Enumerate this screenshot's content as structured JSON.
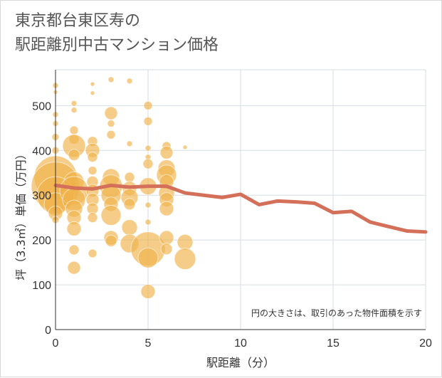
{
  "title_line1": "東京都台東区寿の",
  "title_line2": "駅距離別中古マンション価格",
  "chart_data": {
    "type": "scatter",
    "xlabel": "駅距離（分）",
    "ylabel": "坪（3.3㎡）単価（万円）",
    "xlim": [
      0,
      20
    ],
    "ylim": [
      0,
      580
    ],
    "x_ticks": [
      "0",
      "5",
      "10",
      "15",
      "20"
    ],
    "x_tick_values": [
      0,
      5,
      10,
      15,
      20
    ],
    "y_ticks": [
      "0",
      "100",
      "200",
      "300",
      "400",
      "500"
    ],
    "y_tick_values": [
      0,
      100,
      200,
      300,
      400,
      500
    ],
    "note": "円の大きさは、取引のあった物件面積を示す",
    "colors": {
      "bubble": "#f0b24a",
      "line": "#d4705a",
      "grid": "#d7dde3",
      "axis": "#333333"
    },
    "line": {
      "x": [
        0,
        1,
        2,
        3,
        4,
        5,
        6,
        7,
        8,
        9,
        10,
        11,
        12,
        13,
        14,
        15,
        16,
        17,
        18,
        19,
        20
      ],
      "y": [
        322,
        316,
        314,
        322,
        318,
        320,
        320,
        305,
        300,
        295,
        302,
        279,
        287,
        285,
        282,
        261,
        264,
        240,
        230,
        220,
        218
      ]
    },
    "bubbles": [
      {
        "x": 0,
        "y": 545,
        "size": 4
      },
      {
        "x": 0,
        "y": 530,
        "size": 3
      },
      {
        "x": 0,
        "y": 480,
        "size": 4
      },
      {
        "x": 0,
        "y": 460,
        "size": 4
      },
      {
        "x": 0,
        "y": 430,
        "size": 5
      },
      {
        "x": 0,
        "y": 400,
        "size": 5
      },
      {
        "x": 0,
        "y": 340,
        "size": 30
      },
      {
        "x": 0,
        "y": 320,
        "size": 34
      },
      {
        "x": 0,
        "y": 300,
        "size": 26
      },
      {
        "x": 0,
        "y": 280,
        "size": 16
      },
      {
        "x": 0,
        "y": 260,
        "size": 10
      },
      {
        "x": 0,
        "y": 245,
        "size": 5
      },
      {
        "x": 1,
        "y": 505,
        "size": 4
      },
      {
        "x": 1,
        "y": 490,
        "size": 4
      },
      {
        "x": 1,
        "y": 445,
        "size": 6
      },
      {
        "x": 1,
        "y": 425,
        "size": 7
      },
      {
        "x": 1,
        "y": 410,
        "size": 16
      },
      {
        "x": 1,
        "y": 390,
        "size": 8
      },
      {
        "x": 1,
        "y": 330,
        "size": 14
      },
      {
        "x": 1,
        "y": 310,
        "size": 20
      },
      {
        "x": 1,
        "y": 290,
        "size": 16
      },
      {
        "x": 1,
        "y": 270,
        "size": 12
      },
      {
        "x": 1,
        "y": 250,
        "size": 10
      },
      {
        "x": 1,
        "y": 225,
        "size": 10
      },
      {
        "x": 1,
        "y": 178,
        "size": 7
      },
      {
        "x": 1,
        "y": 138,
        "size": 9
      },
      {
        "x": 2,
        "y": 548,
        "size": 3
      },
      {
        "x": 2,
        "y": 528,
        "size": 3
      },
      {
        "x": 2,
        "y": 420,
        "size": 7
      },
      {
        "x": 2,
        "y": 400,
        "size": 10
      },
      {
        "x": 2,
        "y": 385,
        "size": 7
      },
      {
        "x": 2,
        "y": 355,
        "size": 6
      },
      {
        "x": 2,
        "y": 330,
        "size": 8
      },
      {
        "x": 2,
        "y": 310,
        "size": 9
      },
      {
        "x": 2,
        "y": 290,
        "size": 9
      },
      {
        "x": 2,
        "y": 270,
        "size": 8
      },
      {
        "x": 2,
        "y": 250,
        "size": 7
      },
      {
        "x": 2,
        "y": 170,
        "size": 6
      },
      {
        "x": 3,
        "y": 558,
        "size": 4
      },
      {
        "x": 3,
        "y": 483,
        "size": 9
      },
      {
        "x": 3,
        "y": 460,
        "size": 5
      },
      {
        "x": 3,
        "y": 435,
        "size": 6
      },
      {
        "x": 3,
        "y": 340,
        "size": 12
      },
      {
        "x": 3,
        "y": 320,
        "size": 16
      },
      {
        "x": 3,
        "y": 300,
        "size": 14
      },
      {
        "x": 3,
        "y": 280,
        "size": 10
      },
      {
        "x": 3,
        "y": 255,
        "size": 14
      },
      {
        "x": 3,
        "y": 205,
        "size": 10
      },
      {
        "x": 3,
        "y": 198,
        "size": 8
      },
      {
        "x": 4,
        "y": 555,
        "size": 4
      },
      {
        "x": 4,
        "y": 415,
        "size": 4
      },
      {
        "x": 4,
        "y": 340,
        "size": 7
      },
      {
        "x": 4,
        "y": 315,
        "size": 10
      },
      {
        "x": 4,
        "y": 295,
        "size": 12
      },
      {
        "x": 4,
        "y": 280,
        "size": 8
      },
      {
        "x": 4,
        "y": 228,
        "size": 11
      },
      {
        "x": 4,
        "y": 192,
        "size": 13
      },
      {
        "x": 5,
        "y": 500,
        "size": 6
      },
      {
        "x": 5,
        "y": 465,
        "size": 6
      },
      {
        "x": 5,
        "y": 405,
        "size": 4
      },
      {
        "x": 5,
        "y": 385,
        "size": 4
      },
      {
        "x": 5,
        "y": 370,
        "size": 7
      },
      {
        "x": 5,
        "y": 320,
        "size": 12
      },
      {
        "x": 5,
        "y": 278,
        "size": 4
      },
      {
        "x": 5,
        "y": 240,
        "size": 4
      },
      {
        "x": 5,
        "y": 180,
        "size": 24
      },
      {
        "x": 5,
        "y": 160,
        "size": 14
      },
      {
        "x": 5,
        "y": 85,
        "size": 10
      },
      {
        "x": 6,
        "y": 410,
        "size": 6
      },
      {
        "x": 6,
        "y": 395,
        "size": 9
      },
      {
        "x": 6,
        "y": 360,
        "size": 12
      },
      {
        "x": 6,
        "y": 345,
        "size": 14
      },
      {
        "x": 6,
        "y": 330,
        "size": 10
      },
      {
        "x": 6,
        "y": 305,
        "size": 11
      },
      {
        "x": 6,
        "y": 290,
        "size": 10
      },
      {
        "x": 6,
        "y": 270,
        "size": 10
      },
      {
        "x": 6,
        "y": 205,
        "size": 10
      },
      {
        "x": 6,
        "y": 180,
        "size": 8
      },
      {
        "x": 7,
        "y": 407,
        "size": 3
      },
      {
        "x": 7,
        "y": 195,
        "size": 11
      },
      {
        "x": 7,
        "y": 158,
        "size": 15
      }
    ]
  }
}
